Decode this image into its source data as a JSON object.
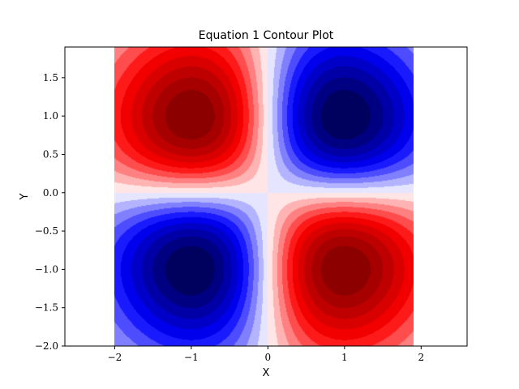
{
  "chart_data": {
    "type": "heatmap",
    "subtype": "filled-contour",
    "title": "Equation 1 Contour Plot",
    "xlabel": "X",
    "ylabel": "Y",
    "xlim": [
      -2.65,
      2.6
    ],
    "ylim": [
      -2.0,
      1.9
    ],
    "data_extent": {
      "x": [
        -2.0,
        1.9
      ],
      "y": [
        -2.0,
        1.9
      ]
    },
    "x_ticks": [
      -2,
      -1,
      0,
      1,
      2
    ],
    "x_tick_labels": [
      "−2",
      "−1",
      "0",
      "1",
      "2"
    ],
    "y_ticks": [
      -2.0,
      -1.5,
      -1.0,
      -0.5,
      0.0,
      0.5,
      1.0,
      1.5
    ],
    "y_tick_labels": [
      "−2.0",
      "−1.5",
      "−1.0",
      "−0.5",
      "0.0",
      "0.5",
      "1.0",
      "1.5"
    ],
    "colormap": "seismic",
    "levels": 20,
    "grid": false,
    "peaks": [
      {
        "x": -1.0,
        "y": 1.0,
        "sign": "minimum",
        "color": "dark-blue"
      },
      {
        "x": 1.0,
        "y": 1.0,
        "sign": "maximum",
        "color": "dark-red"
      },
      {
        "x": -1.0,
        "y": -1.0,
        "sign": "maximum",
        "color": "dark-red"
      },
      {
        "x": 1.0,
        "y": -1.0,
        "sign": "minimum",
        "color": "dark-blue"
      }
    ],
    "colors": {
      "negative_extreme": "#00004c",
      "negative": "#0000ff",
      "neutral": "#ffffff",
      "positive": "#ff0000",
      "positive_extreme": "#800000"
    }
  }
}
